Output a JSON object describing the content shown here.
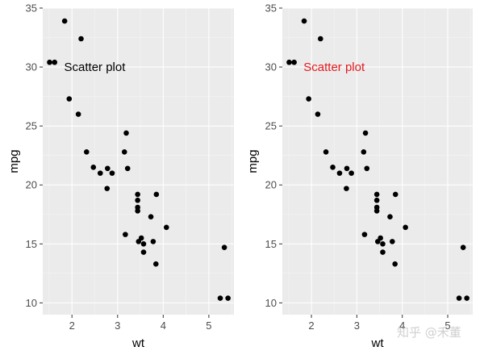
{
  "chart_data": [
    {
      "type": "scatter",
      "xlabel": "wt",
      "ylabel": "mpg",
      "xlim": [
        1.36,
        5.55
      ],
      "ylim": [
        9.0,
        35.0
      ],
      "xticks": [
        2,
        3,
        4,
        5
      ],
      "yticks": [
        10,
        15,
        20,
        25,
        30,
        35
      ],
      "grid": true,
      "annotation": {
        "text": "Scatter plot",
        "x": 2.5,
        "y": 30,
        "color": "#000000"
      },
      "points": [
        {
          "x": 1.51,
          "y": 30.4
        },
        {
          "x": 1.62,
          "y": 30.4
        },
        {
          "x": 1.84,
          "y": 33.9
        },
        {
          "x": 1.94,
          "y": 27.3
        },
        {
          "x": 2.14,
          "y": 26.0
        },
        {
          "x": 2.2,
          "y": 32.4
        },
        {
          "x": 2.32,
          "y": 22.8
        },
        {
          "x": 2.47,
          "y": 21.5
        },
        {
          "x": 2.62,
          "y": 21.0
        },
        {
          "x": 2.77,
          "y": 19.7
        },
        {
          "x": 2.78,
          "y": 21.4
        },
        {
          "x": 2.88,
          "y": 21.0
        },
        {
          "x": 3.15,
          "y": 22.8
        },
        {
          "x": 3.17,
          "y": 15.8
        },
        {
          "x": 3.19,
          "y": 24.4
        },
        {
          "x": 3.22,
          "y": 21.4
        },
        {
          "x": 3.44,
          "y": 18.7
        },
        {
          "x": 3.44,
          "y": 19.2
        },
        {
          "x": 3.44,
          "y": 17.8
        },
        {
          "x": 3.44,
          "y": 18.1
        },
        {
          "x": 3.46,
          "y": 15.2
        },
        {
          "x": 3.52,
          "y": 15.5
        },
        {
          "x": 3.57,
          "y": 15.0
        },
        {
          "x": 3.57,
          "y": 14.3
        },
        {
          "x": 3.73,
          "y": 17.3
        },
        {
          "x": 3.78,
          "y": 15.2
        },
        {
          "x": 3.84,
          "y": 13.3
        },
        {
          "x": 3.85,
          "y": 19.2
        },
        {
          "x": 4.07,
          "y": 16.4
        },
        {
          "x": 5.25,
          "y": 10.4
        },
        {
          "x": 5.34,
          "y": 14.7
        },
        {
          "x": 5.42,
          "y": 10.4
        }
      ]
    },
    {
      "type": "scatter",
      "xlabel": "wt",
      "ylabel": "mpg",
      "xlim": [
        1.36,
        5.55
      ],
      "ylim": [
        9.0,
        35.0
      ],
      "xticks": [
        2,
        3,
        4,
        5
      ],
      "yticks": [
        10,
        15,
        20,
        25,
        30,
        35
      ],
      "grid": true,
      "annotation": {
        "text": "Scatter plot",
        "x": 2.5,
        "y": 30,
        "color": "#e41a1c"
      },
      "points": [
        {
          "x": 1.51,
          "y": 30.4
        },
        {
          "x": 1.62,
          "y": 30.4
        },
        {
          "x": 1.84,
          "y": 33.9
        },
        {
          "x": 1.94,
          "y": 27.3
        },
        {
          "x": 2.14,
          "y": 26.0
        },
        {
          "x": 2.2,
          "y": 32.4
        },
        {
          "x": 2.32,
          "y": 22.8
        },
        {
          "x": 2.47,
          "y": 21.5
        },
        {
          "x": 2.62,
          "y": 21.0
        },
        {
          "x": 2.77,
          "y": 19.7
        },
        {
          "x": 2.78,
          "y": 21.4
        },
        {
          "x": 2.88,
          "y": 21.0
        },
        {
          "x": 3.15,
          "y": 22.8
        },
        {
          "x": 3.17,
          "y": 15.8
        },
        {
          "x": 3.19,
          "y": 24.4
        },
        {
          "x": 3.22,
          "y": 21.4
        },
        {
          "x": 3.44,
          "y": 18.7
        },
        {
          "x": 3.44,
          "y": 19.2
        },
        {
          "x": 3.44,
          "y": 17.8
        },
        {
          "x": 3.44,
          "y": 18.1
        },
        {
          "x": 3.46,
          "y": 15.2
        },
        {
          "x": 3.52,
          "y": 15.5
        },
        {
          "x": 3.57,
          "y": 15.0
        },
        {
          "x": 3.57,
          "y": 14.3
        },
        {
          "x": 3.73,
          "y": 17.3
        },
        {
          "x": 3.78,
          "y": 15.2
        },
        {
          "x": 3.84,
          "y": 13.3
        },
        {
          "x": 3.85,
          "y": 19.2
        },
        {
          "x": 4.07,
          "y": 16.4
        },
        {
          "x": 5.25,
          "y": 10.4
        },
        {
          "x": 5.34,
          "y": 14.7
        },
        {
          "x": 5.42,
          "y": 10.4
        }
      ]
    }
  ],
  "watermark": {
    "text": "知乎 @禾董"
  }
}
